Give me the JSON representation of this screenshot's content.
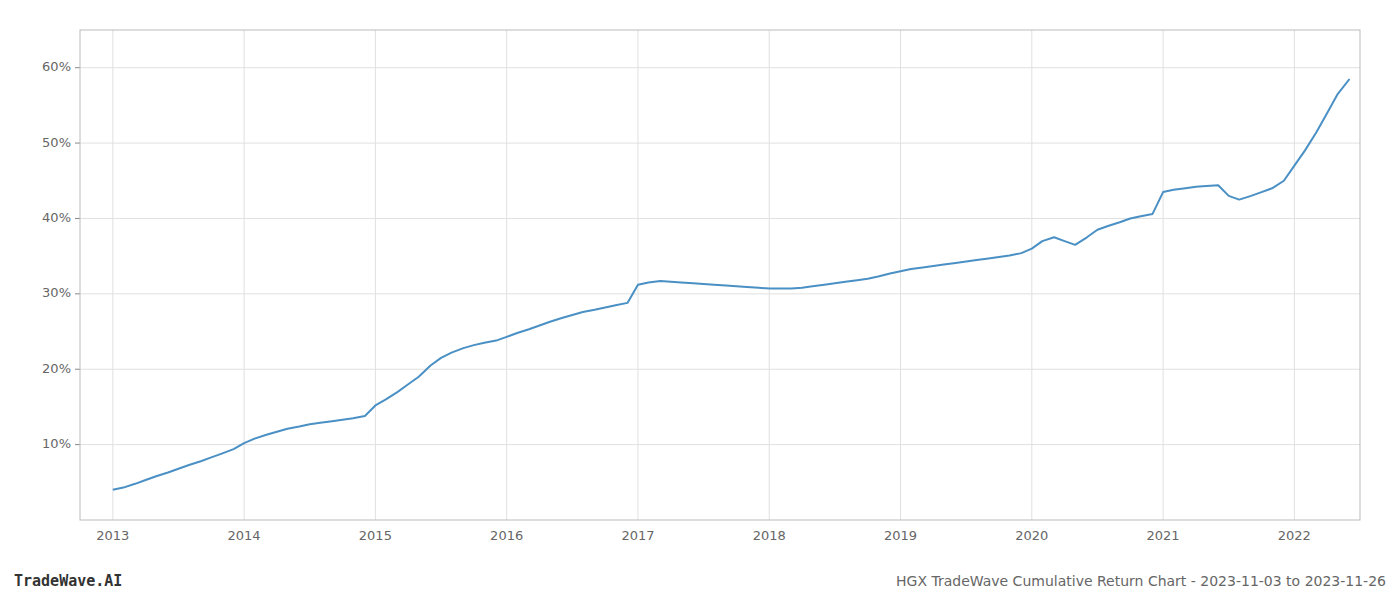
{
  "chart_data": {
    "type": "line",
    "title": "HGX TradeWave Cumulative Return Chart - 2023-11-03 to 2023-11-26",
    "annotations": [
      "TradeWave.AI"
    ],
    "color": "#4a90c4",
    "grid": true,
    "x": [
      2013.0,
      2013.08,
      2013.17,
      2013.25,
      2013.33,
      2013.42,
      2013.5,
      2013.58,
      2013.67,
      2013.75,
      2013.83,
      2013.92,
      2014.0,
      2014.08,
      2014.17,
      2014.25,
      2014.33,
      2014.42,
      2014.5,
      2014.58,
      2014.67,
      2014.75,
      2014.83,
      2014.92,
      2015.0,
      2015.08,
      2015.17,
      2015.25,
      2015.33,
      2015.42,
      2015.5,
      2015.58,
      2015.67,
      2015.75,
      2015.83,
      2015.92,
      2016.0,
      2016.08,
      2016.17,
      2016.25,
      2016.33,
      2016.42,
      2016.5,
      2016.58,
      2016.67,
      2016.75,
      2016.83,
      2016.92,
      2017.0,
      2017.08,
      2017.17,
      2017.25,
      2017.33,
      2017.42,
      2017.5,
      2017.58,
      2017.67,
      2017.75,
      2017.83,
      2017.92,
      2018.0,
      2018.08,
      2018.17,
      2018.25,
      2018.33,
      2018.42,
      2018.5,
      2018.58,
      2018.67,
      2018.75,
      2018.83,
      2018.92,
      2019.0,
      2019.08,
      2019.17,
      2019.25,
      2019.33,
      2019.42,
      2019.5,
      2019.58,
      2019.67,
      2019.75,
      2019.83,
      2019.92,
      2020.0,
      2020.08,
      2020.17,
      2020.25,
      2020.33,
      2020.42,
      2020.5,
      2020.58,
      2020.67,
      2020.75,
      2020.83,
      2020.92,
      2021.0,
      2021.08,
      2021.17,
      2021.25,
      2021.33,
      2021.42,
      2021.5,
      2021.58,
      2021.67,
      2021.75,
      2021.83,
      2021.92,
      2022.0,
      2022.08,
      2022.17,
      2022.25,
      2022.33,
      2022.42
    ],
    "values": [
      4.0,
      4.3,
      4.8,
      5.3,
      5.8,
      6.3,
      6.8,
      7.3,
      7.8,
      8.3,
      8.8,
      9.4,
      10.2,
      10.8,
      11.3,
      11.7,
      12.1,
      12.4,
      12.7,
      12.9,
      13.1,
      13.3,
      13.5,
      13.8,
      15.2,
      16.0,
      17.0,
      18.0,
      19.0,
      20.5,
      21.5,
      22.2,
      22.8,
      23.2,
      23.5,
      23.8,
      24.3,
      24.8,
      25.3,
      25.8,
      26.3,
      26.8,
      27.2,
      27.6,
      27.9,
      28.2,
      28.5,
      28.8,
      31.2,
      31.5,
      31.7,
      31.6,
      31.5,
      31.4,
      31.3,
      31.2,
      31.1,
      31.0,
      30.9,
      30.8,
      30.7,
      30.7,
      30.7,
      30.8,
      31.0,
      31.2,
      31.4,
      31.6,
      31.8,
      32.0,
      32.3,
      32.7,
      33.0,
      33.3,
      33.5,
      33.7,
      33.9,
      34.1,
      34.3,
      34.5,
      34.7,
      34.9,
      35.1,
      35.4,
      36.0,
      37.0,
      37.5,
      37.0,
      36.5,
      37.5,
      38.5,
      39.0,
      39.5,
      40.0,
      40.3,
      40.6,
      43.5,
      43.8,
      44.0,
      44.2,
      44.3,
      44.4,
      43.0,
      42.5,
      43.0,
      43.5,
      44.0,
      45.0,
      47.0,
      49.0,
      51.5,
      54.0,
      56.5,
      58.5
    ],
    "xlim": [
      2012.75,
      2022.5
    ],
    "xticks": [
      2013,
      2014,
      2015,
      2016,
      2017,
      2018,
      2019,
      2020,
      2021,
      2022
    ],
    "ylim": [
      0,
      65
    ],
    "yticks": [
      {
        "value": 10,
        "label": "10%"
      },
      {
        "value": 20,
        "label": "20%"
      },
      {
        "value": 30,
        "label": "30%"
      },
      {
        "value": 40,
        "label": "40%"
      },
      {
        "value": 50,
        "label": "50%"
      },
      {
        "value": 60,
        "label": "60%"
      }
    ]
  }
}
